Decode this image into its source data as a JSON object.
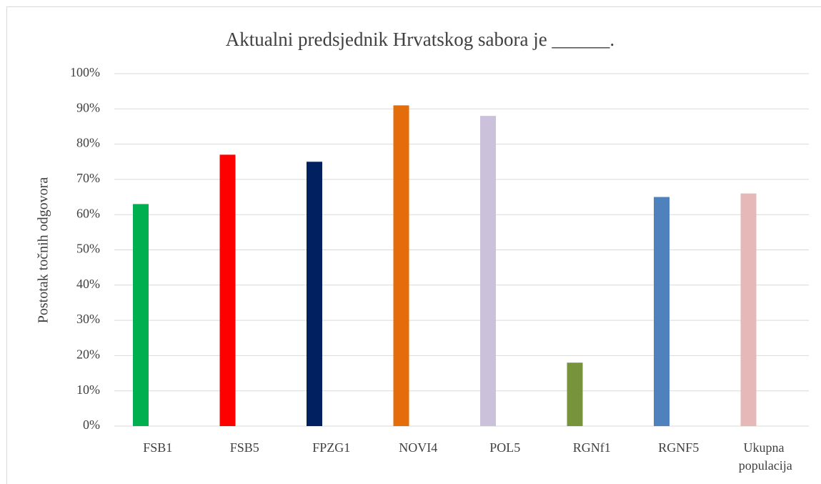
{
  "chart_data": {
    "type": "bar",
    "title": "Aktualni predsjednik Hrvatskog sabora je ______.",
    "y_label": "Postotak točnih odgovora",
    "categories": [
      "FSB1",
      "FSB5",
      "FPZG1",
      "NOVI4",
      "POL5",
      "RGNf1",
      "RGNF5",
      "Ukupna populacija"
    ],
    "values": [
      63,
      77,
      75,
      91,
      88,
      18,
      65,
      66
    ],
    "colors": [
      "#00b050",
      "#ff0000",
      "#002060",
      "#e46c0a",
      "#ccc1da",
      "#77933c",
      "#4f81bd",
      "#e6b9b8"
    ],
    "ylim": [
      0,
      100
    ],
    "yticks": [
      {
        "value": 0,
        "label": "0%"
      },
      {
        "value": 10,
        "label": "10%"
      },
      {
        "value": 20,
        "label": "20%"
      },
      {
        "value": 30,
        "label": "30%"
      },
      {
        "value": 40,
        "label": "40%"
      },
      {
        "value": 50,
        "label": "50%"
      },
      {
        "value": 60,
        "label": "60%"
      },
      {
        "value": 70,
        "label": "70%"
      },
      {
        "value": 80,
        "label": "80%"
      },
      {
        "value": 90,
        "label": "90%"
      },
      {
        "value": 100,
        "label": "100%"
      }
    ],
    "grid": true
  }
}
